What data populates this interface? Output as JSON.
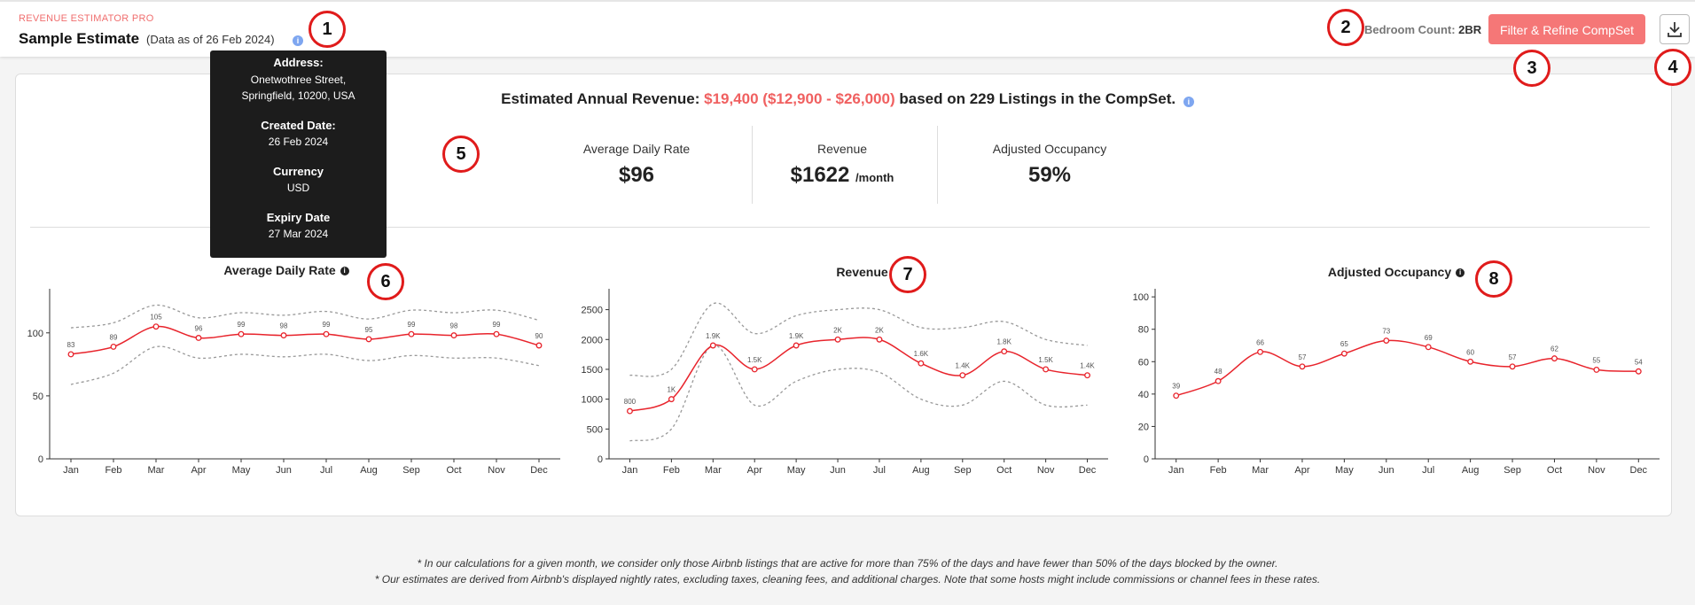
{
  "header": {
    "app_name": "REVENUE ESTIMATOR PRO",
    "title": "Sample Estimate",
    "data_as_of": "(Data as of 26 Feb 2024)",
    "bedroom_label": "Bedroom Count:",
    "bedroom_value": "2BR",
    "filter_button": "Filter & Refine CompSet"
  },
  "tooltip": {
    "address_label": "Address:",
    "address_line1": "Onetwothree Street,",
    "address_line2": "Springfield, 10200, USA",
    "created_label": "Created Date:",
    "created_value": "26 Feb 2024",
    "currency_label": "Currency",
    "currency_value": "USD",
    "expiry_label": "Expiry Date",
    "expiry_value": "27 Mar 2024"
  },
  "badges": [
    "1",
    "2",
    "3",
    "4",
    "5",
    "6",
    "7",
    "8"
  ],
  "summary": {
    "prefix": "Estimated Annual Revenue:",
    "value": "$19,400 ($12,900 - $26,000)",
    "suffix": "based on 229 Listings in the CompSet."
  },
  "metrics": {
    "adr_label": "Average Daily Rate",
    "adr_value": "$96",
    "revenue_label": "Revenue",
    "revenue_value": "$1622",
    "revenue_unit": "/month",
    "occ_label": "Adjusted Occupancy",
    "occ_value": "59%"
  },
  "chart_data": [
    {
      "type": "line",
      "title": "Average Daily Rate",
      "categories": [
        "Jan",
        "Feb",
        "Mar",
        "Apr",
        "May",
        "Jun",
        "Jul",
        "Aug",
        "Sep",
        "Oct",
        "Nov",
        "Dec"
      ],
      "series": [
        {
          "values": [
            83,
            89,
            105,
            96,
            99,
            98,
            99,
            95,
            99,
            98,
            99,
            90
          ],
          "labels": [
            "83",
            "89",
            "105",
            "96",
            "99",
            "98",
            "99",
            "95",
            "99",
            "98",
            "99",
            "90"
          ]
        },
        {
          "values": [
            104,
            108,
            122,
            112,
            116,
            114,
            117,
            111,
            118,
            116,
            118,
            110
          ],
          "style": "dashed"
        },
        {
          "values": [
            59,
            68,
            89,
            80,
            83,
            81,
            83,
            78,
            82,
            80,
            80,
            74
          ],
          "style": "dashed"
        }
      ],
      "yticks": [
        0,
        50,
        100
      ],
      "ylim": [
        0,
        135
      ]
    },
    {
      "type": "line",
      "title": "Revenue",
      "categories": [
        "Jan",
        "Feb",
        "Mar",
        "Apr",
        "May",
        "Jun",
        "Jul",
        "Aug",
        "Sep",
        "Oct",
        "Nov",
        "Dec"
      ],
      "series": [
        {
          "values": [
            800,
            1000,
            1900,
            1500,
            1900,
            2000,
            2000,
            1600,
            1400,
            1800,
            1500,
            1400
          ],
          "labels": [
            "800",
            "1K",
            "1.9K",
            "1.5K",
            "1.9K",
            "2K",
            "2K",
            "1.6K",
            "1.4K",
            "1.8K",
            "1.5K",
            "1.4K"
          ]
        },
        {
          "values": [
            1400,
            1500,
            2600,
            2100,
            2400,
            2500,
            2500,
            2200,
            2200,
            2300,
            2000,
            1900
          ],
          "style": "dashed"
        },
        {
          "values": [
            300,
            500,
            1900,
            900,
            1300,
            1500,
            1450,
            1000,
            900,
            1300,
            900,
            900
          ],
          "style": "dashed"
        }
      ],
      "yticks": [
        0,
        500,
        1000,
        1500,
        2000,
        2500
      ],
      "ylim": [
        0,
        2850
      ]
    },
    {
      "type": "line",
      "title": "Adjusted Occupancy",
      "categories": [
        "Jan",
        "Feb",
        "Mar",
        "Apr",
        "May",
        "Jun",
        "Jul",
        "Aug",
        "Sep",
        "Oct",
        "Nov",
        "Dec"
      ],
      "series": [
        {
          "values": [
            39,
            48,
            66,
            57,
            65,
            73,
            69,
            60,
            57,
            62,
            55,
            54
          ],
          "labels": [
            "39",
            "48",
            "66",
            "57",
            "65",
            "73",
            "69",
            "60",
            "57",
            "62",
            "55",
            "54"
          ]
        }
      ],
      "yticks": [
        0,
        20,
        40,
        60,
        80,
        100
      ],
      "ylim": [
        0,
        105
      ]
    }
  ],
  "footnotes": [
    "* In our calculations for a given month, we consider only those Airbnb listings that are active for more than 75% of the days and have fewer than 50% of the days blocked by the owner.",
    "* Our estimates are derived from Airbnb's displayed nightly rates, excluding taxes, cleaning fees, and additional charges. Note that some hosts might include commissions or channel fees in these rates."
  ],
  "colors": {
    "accent": "#f06060",
    "line": "#e8242c",
    "band": "#999999"
  }
}
